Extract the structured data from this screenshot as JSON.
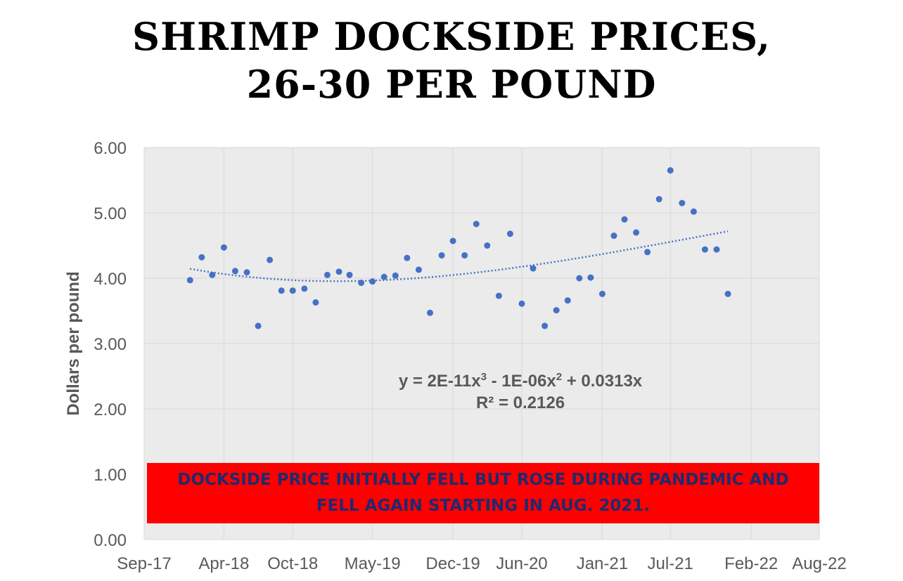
{
  "title_line1": "SHRIMP DOCKSIDE PRICES,",
  "title_line2": "26-30 PER POUND",
  "annotation": {
    "equation_text": "y = 2E-11x",
    "equation_exp1": "3",
    "equation_mid": " - 1E-06x",
    "equation_exp2": "2",
    "equation_end": " + 0.0313x",
    "r_squared": "R² = 0.2126",
    "banner_line1": "DOCKSIDE PRICE INITIALLY FELL BUT ROSE DURING PANDEMIC AND",
    "banner_line2": "FELL AGAIN STARTING IN AUG. 2021."
  },
  "colors": {
    "point": "#4472c4",
    "trend": "#4472c4",
    "plot_bg": "#ebebeb",
    "banner": "#ff0000",
    "banner_text": "#1f2a6e"
  },
  "chart_data": {
    "type": "scatter",
    "title": "SHRIMP DOCKSIDE PRICES, 26-30 PER POUND",
    "xlabel": "",
    "ylabel": "Dollars per pound",
    "xlim": [
      "2017-09",
      "2022-08"
    ],
    "ylim": [
      0,
      6
    ],
    "x_ticks": [
      "Sep-17",
      "Apr-18",
      "Oct-18",
      "May-19",
      "Dec-19",
      "Jun-20",
      "Jan-21",
      "Jul-21",
      "Feb-22",
      "Aug-22"
    ],
    "y_ticks": [
      "0.00",
      "1.00",
      "2.00",
      "3.00",
      "4.00",
      "5.00",
      "6.00"
    ],
    "grid": true,
    "trendline": {
      "type": "polynomial",
      "order": 3
    },
    "series": [
      {
        "x": [
          "2018-01-01",
          "2018-02-01",
          "2018-03-01",
          "2018-04-01",
          "2018-05-01",
          "2018-06-01",
          "2018-07-01",
          "2018-08-01",
          "2018-09-01",
          "2018-10-01",
          "2018-11-01",
          "2018-12-01",
          "2019-01-01",
          "2019-02-01",
          "2019-03-01",
          "2019-04-01",
          "2019-05-01",
          "2019-06-01",
          "2019-07-01",
          "2019-08-01",
          "2019-09-01",
          "2019-10-01",
          "2019-11-01",
          "2019-12-01",
          "2020-01-01",
          "2020-02-01",
          "2020-03-01",
          "2020-04-01",
          "2020-05-01",
          "2020-06-01",
          "2020-07-01",
          "2020-08-01",
          "2020-09-01",
          "2020-10-01",
          "2020-11-01",
          "2020-12-01",
          "2021-01-01",
          "2021-02-01",
          "2021-03-01",
          "2021-04-01",
          "2021-05-01",
          "2021-06-01",
          "2021-07-01",
          "2021-08-01",
          "2021-09-01",
          "2021-10-01",
          "2021-11-01",
          "2021-12-01"
        ],
        "y": [
          3.97,
          4.32,
          4.05,
          4.47,
          4.11,
          4.09,
          3.27,
          4.28,
          3.81,
          3.81,
          3.84,
          3.63,
          4.05,
          4.1,
          4.05,
          3.93,
          3.95,
          4.02,
          4.04,
          4.31,
          4.13,
          3.47,
          4.35,
          4.57,
          4.35,
          4.83,
          4.5,
          3.73,
          4.68,
          3.61,
          4.15,
          3.27,
          3.51,
          3.66,
          4.0,
          4.01,
          3.76,
          4.65,
          4.9,
          4.7,
          4.4,
          5.21,
          5.65,
          5.15,
          5.02,
          4.44,
          4.44,
          3.76
        ]
      }
    ]
  }
}
